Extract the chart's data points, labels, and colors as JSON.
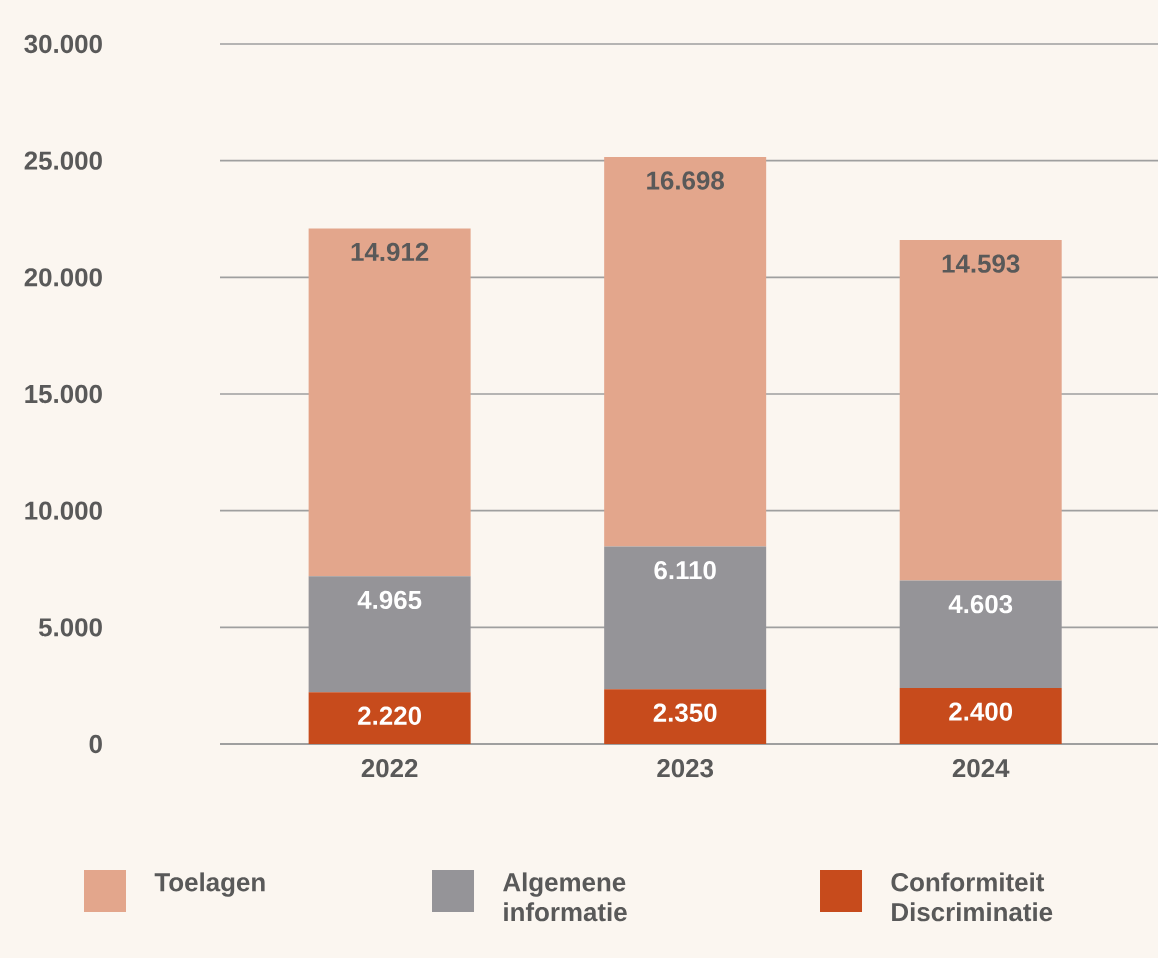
{
  "chart_data": {
    "type": "bar",
    "stacked": true,
    "categories": [
      "2022",
      "2023",
      "2024"
    ],
    "series": [
      {
        "name": "Conformiteit Discriminatie",
        "color": "#c74b1c",
        "values": [
          2220,
          2350,
          2400
        ],
        "value_labels": [
          "2.220",
          "2.350",
          "2.400"
        ]
      },
      {
        "name": "Algemene informatie",
        "color": "#959498",
        "values": [
          4965,
          6110,
          4603
        ],
        "value_labels": [
          "4.965",
          "6.110",
          "4.603"
        ]
      },
      {
        "name": "Toelagen",
        "color": "#e3a68c",
        "values": [
          14912,
          16698,
          14593
        ],
        "value_labels": [
          "14.912",
          "16.698",
          "14.593"
        ]
      }
    ],
    "ylim": [
      0,
      30000
    ],
    "yticks": [
      {
        "value": 0,
        "label": "0"
      },
      {
        "value": 5000,
        "label": "5.000"
      },
      {
        "value": 10000,
        "label": "10.000"
      },
      {
        "value": 15000,
        "label": "15.000"
      },
      {
        "value": 20000,
        "label": "20.000"
      },
      {
        "value": 25000,
        "label": "25.000"
      },
      {
        "value": 30000,
        "label": "30.000"
      }
    ],
    "grid": "y",
    "legend": "bottom"
  }
}
